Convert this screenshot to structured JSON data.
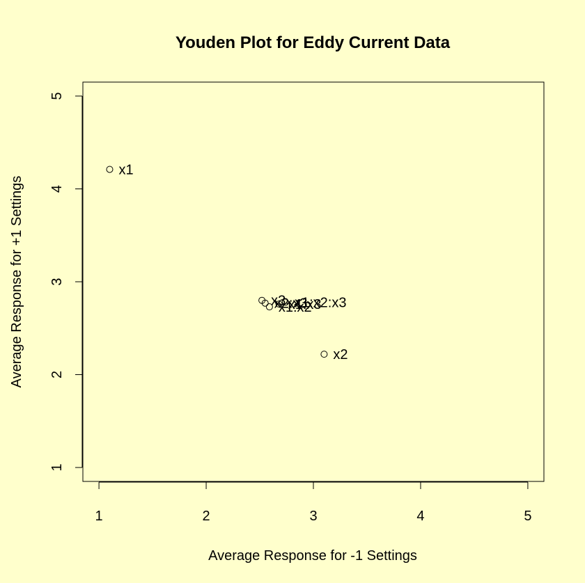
{
  "chart_data": {
    "type": "scatter",
    "title": "Youden Plot for Eddy Current Data",
    "xlabel": "Average Response for -1 Settings",
    "ylabel": "Average Response for +1 Settings",
    "xlim": [
      0.85,
      5.15
    ],
    "ylim": [
      0.85,
      5.15
    ],
    "xticks": [
      1,
      2,
      3,
      4,
      5
    ],
    "yticks": [
      1,
      2,
      3,
      4,
      5
    ],
    "grid": false,
    "legend": "none",
    "marker": "open-circle",
    "background": "#ffffcc",
    "points": [
      {
        "label": "x1",
        "x": 1.1,
        "y": 4.21
      },
      {
        "label": "x2",
        "x": 3.1,
        "y": 2.22
      },
      {
        "label": "x3",
        "x": 2.52,
        "y": 2.8
      },
      {
        "label": "x1:x2",
        "x": 2.59,
        "y": 2.73
      },
      {
        "label": "x1:x3",
        "x": 2.68,
        "y": 2.76
      },
      {
        "label": "x2:x3",
        "x": 2.55,
        "y": 2.77
      },
      {
        "label": "x1:x2:x3",
        "x": 2.74,
        "y": 2.78
      }
    ]
  }
}
